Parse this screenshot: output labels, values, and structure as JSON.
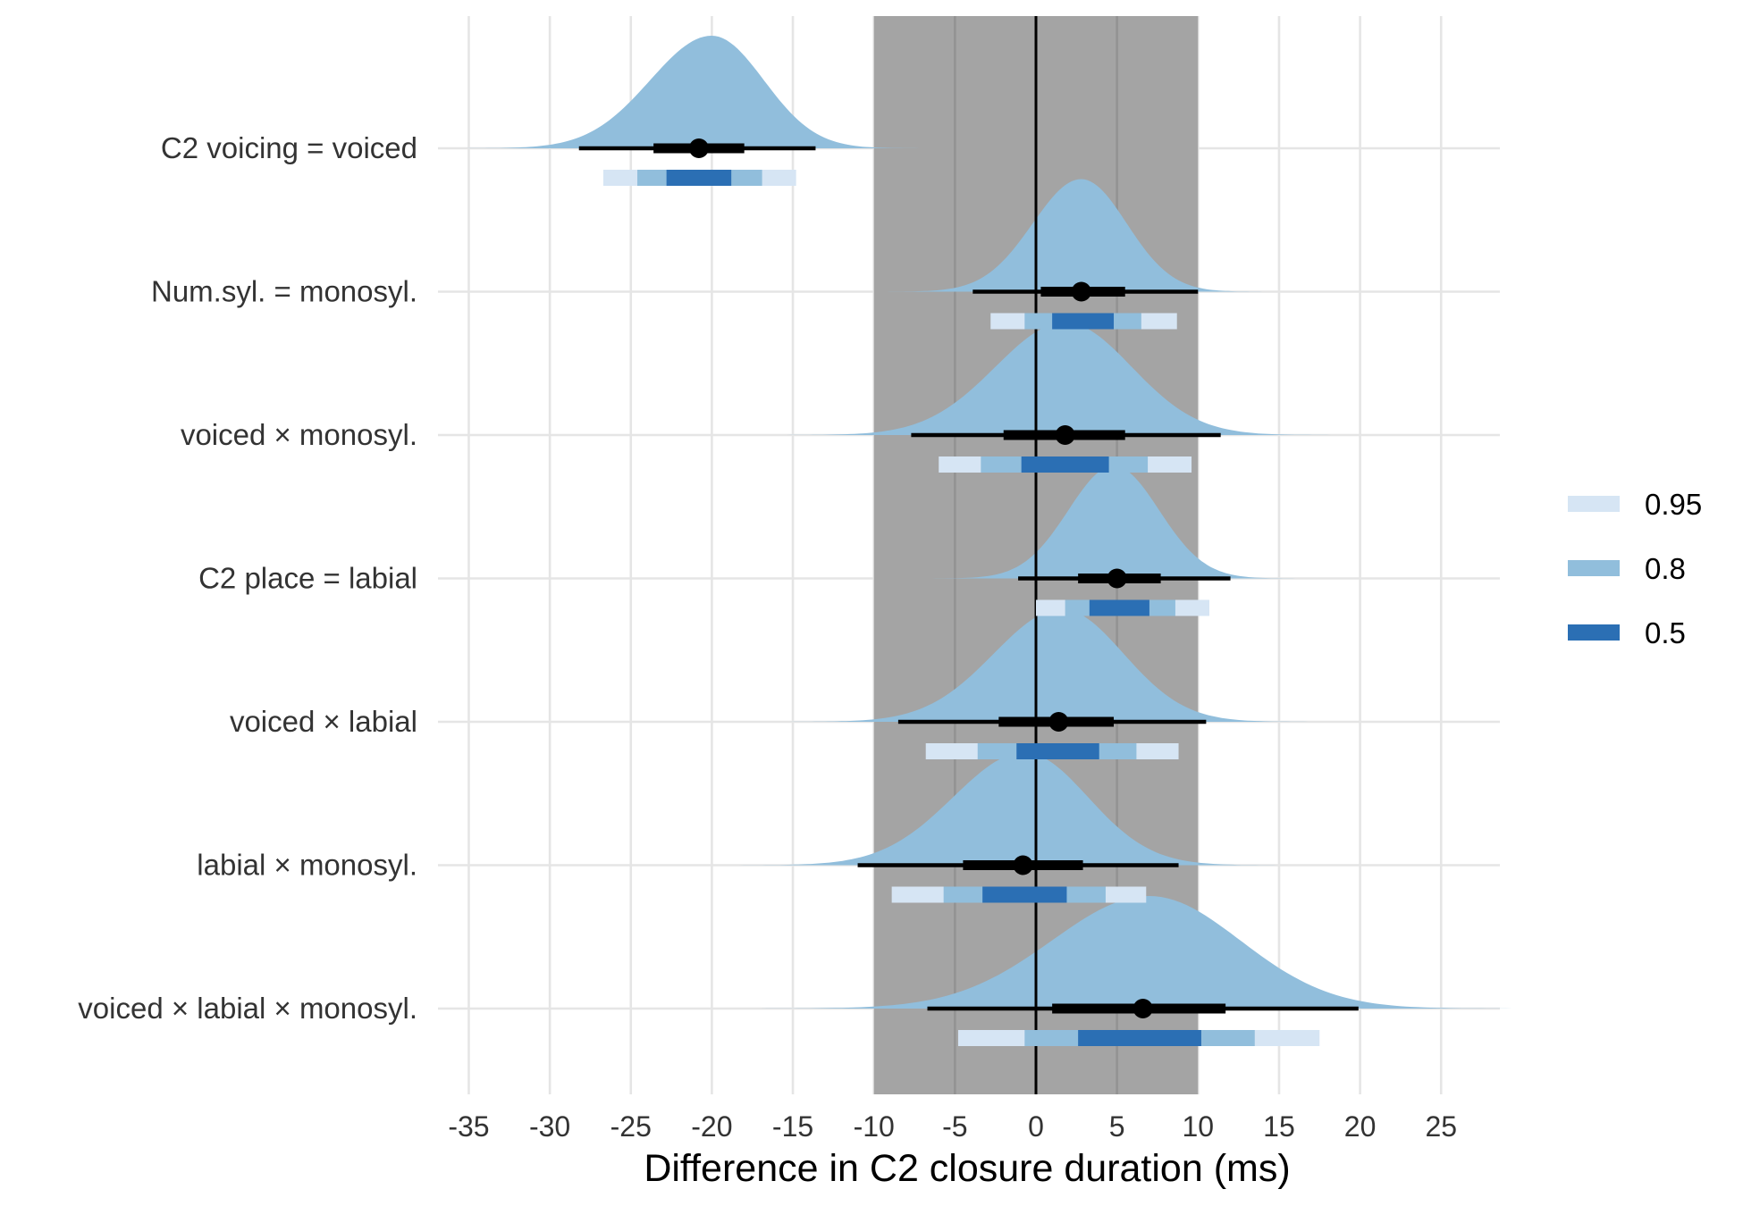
{
  "chart_data": {
    "type": "interval",
    "xlabel": "Difference in C2 closure duration (ms)",
    "ylabel": "",
    "xlim": [
      -37,
      29
    ],
    "x_ticks": [
      -35,
      -30,
      -25,
      -20,
      -15,
      -10,
      -5,
      0,
      5,
      10,
      15,
      20,
      25
    ],
    "grid": true,
    "rope": [
      -10,
      10
    ],
    "reference_line": 0,
    "legend": {
      "position": "right",
      "entries": [
        {
          "label": "0.95",
          "color": "#d6e5f4"
        },
        {
          "label": "0.8",
          "color": "#91bedc"
        },
        {
          "label": "0.5",
          "color": "#2b6fb4"
        }
      ]
    },
    "colors": {
      "density": "#91bedc",
      "rope": "#a4a4a4",
      "interval": "#000000",
      "grid": "#e5e5e5"
    },
    "categories": [
      {
        "label": "C2 voicing = voiced",
        "median": -20.8,
        "line_66": [
          -23.6,
          -18.0
        ],
        "line_95": [
          -28.2,
          -13.6
        ],
        "bars": {
          "ci95": [
            -26.7,
            -14.8
          ],
          "ci80": [
            -24.6,
            -16.9
          ],
          "ci50": [
            -22.8,
            -18.8
          ]
        },
        "density": {
          "mode": -20.0,
          "sd_left": 3.8,
          "sd_right": 3.2
        }
      },
      {
        "label": "Num.syl. = monosyl.",
        "median": 2.8,
        "line_66": [
          0.3,
          5.5
        ],
        "line_95": [
          -3.9,
          10.0
        ],
        "bars": {
          "ci95": [
            -2.8,
            8.7
          ],
          "ci80": [
            -0.7,
            6.5
          ],
          "ci50": [
            1.0,
            4.8
          ]
        },
        "density": {
          "mode": 2.8,
          "sd_left": 3.0,
          "sd_right": 2.8
        }
      },
      {
        "label": "voiced × monosyl.",
        "median": 1.8,
        "line_66": [
          -2.0,
          5.5
        ],
        "line_95": [
          -7.7,
          11.4
        ],
        "bars": {
          "ci95": [
            -6.0,
            9.6
          ],
          "ci80": [
            -3.4,
            6.9
          ],
          "ci50": [
            -0.9,
            4.5
          ]
        },
        "density": {
          "mode": 1.8,
          "sd_left": 4.3,
          "sd_right": 4.1
        }
      },
      {
        "label": "C2 place = labial",
        "median": 5.0,
        "line_66": [
          2.6,
          7.7
        ],
        "line_95": [
          -1.1,
          12.0
        ],
        "bars": {
          "ci95": [
            0.0,
            10.7
          ],
          "ci80": [
            1.8,
            8.6
          ],
          "ci50": [
            3.3,
            7.0
          ]
        },
        "density": {
          "mode": 4.8,
          "sd_left": 2.8,
          "sd_right": 2.8
        }
      },
      {
        "label": "voiced × labial",
        "median": 1.4,
        "line_66": [
          -2.3,
          4.8
        ],
        "line_95": [
          -8.5,
          10.5
        ],
        "bars": {
          "ci95": [
            -6.8,
            8.8
          ],
          "ci80": [
            -3.6,
            6.2
          ],
          "ci50": [
            -1.2,
            3.9
          ]
        },
        "density": {
          "mode": 1.6,
          "sd_left": 4.2,
          "sd_right": 3.8
        }
      },
      {
        "label": "labial × monosyl.",
        "median": -0.8,
        "line_66": [
          -4.5,
          2.9
        ],
        "line_95": [
          -11.0,
          8.8
        ],
        "bars": {
          "ci95": [
            -8.9,
            6.8
          ],
          "ci80": [
            -5.7,
            4.3
          ],
          "ci50": [
            -3.3,
            1.9
          ]
        },
        "density": {
          "mode": -0.7,
          "sd_left": 4.4,
          "sd_right": 3.9
        }
      },
      {
        "label": "voiced × labial × monosyl.",
        "median": 6.6,
        "line_66": [
          1.0,
          11.7
        ],
        "line_95": [
          -6.7,
          19.9
        ],
        "bars": {
          "ci95": [
            -4.8,
            17.5
          ],
          "ci80": [
            -0.7,
            13.5
          ],
          "ci50": [
            2.6,
            10.2
          ]
        },
        "density": {
          "mode": 7.0,
          "sd_left": 6.0,
          "sd_right": 5.6
        }
      }
    ]
  }
}
